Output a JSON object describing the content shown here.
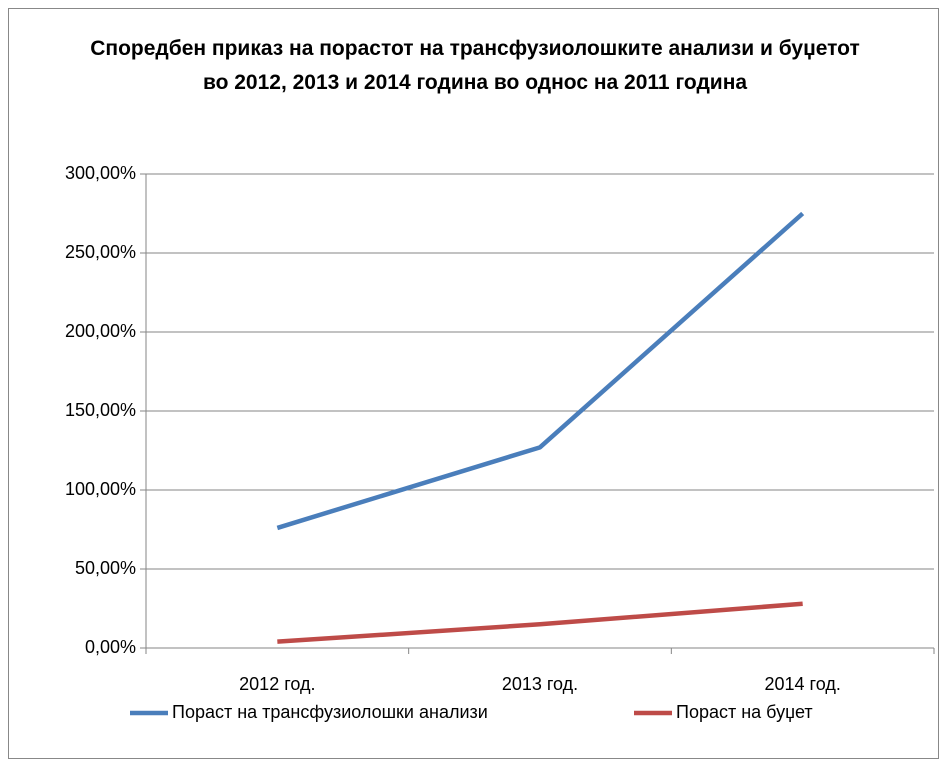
{
  "chart_data": {
    "type": "line",
    "title": "Споредбен приказ на порастот на трансфузиолошките анализи и буџетот во 2012, 2013 и 2014 година во однос на 2011 година",
    "categories": [
      "2012 год.",
      "2013 год.",
      "2014 год."
    ],
    "series": [
      {
        "name": "Пораст на трансфузиолошки анализи",
        "color": "#4a7ebb",
        "values": [
          76,
          127,
          275
        ]
      },
      {
        "name": "Пораст на буџет",
        "color": "#be4b48",
        "values": [
          4,
          15,
          28
        ]
      }
    ],
    "ylim": [
      0,
      300
    ],
    "yticks": [
      {
        "value": 0,
        "label": "0,00%"
      },
      {
        "value": 50,
        "label": "50,00%"
      },
      {
        "value": 100,
        "label": "100,00%"
      },
      {
        "value": 150,
        "label": "150,00%"
      },
      {
        "value": 200,
        "label": "200,00%"
      },
      {
        "value": 250,
        "label": "250,00%"
      },
      {
        "value": 300,
        "label": "300,00%"
      }
    ],
    "grid": true,
    "legend": "bottom"
  }
}
